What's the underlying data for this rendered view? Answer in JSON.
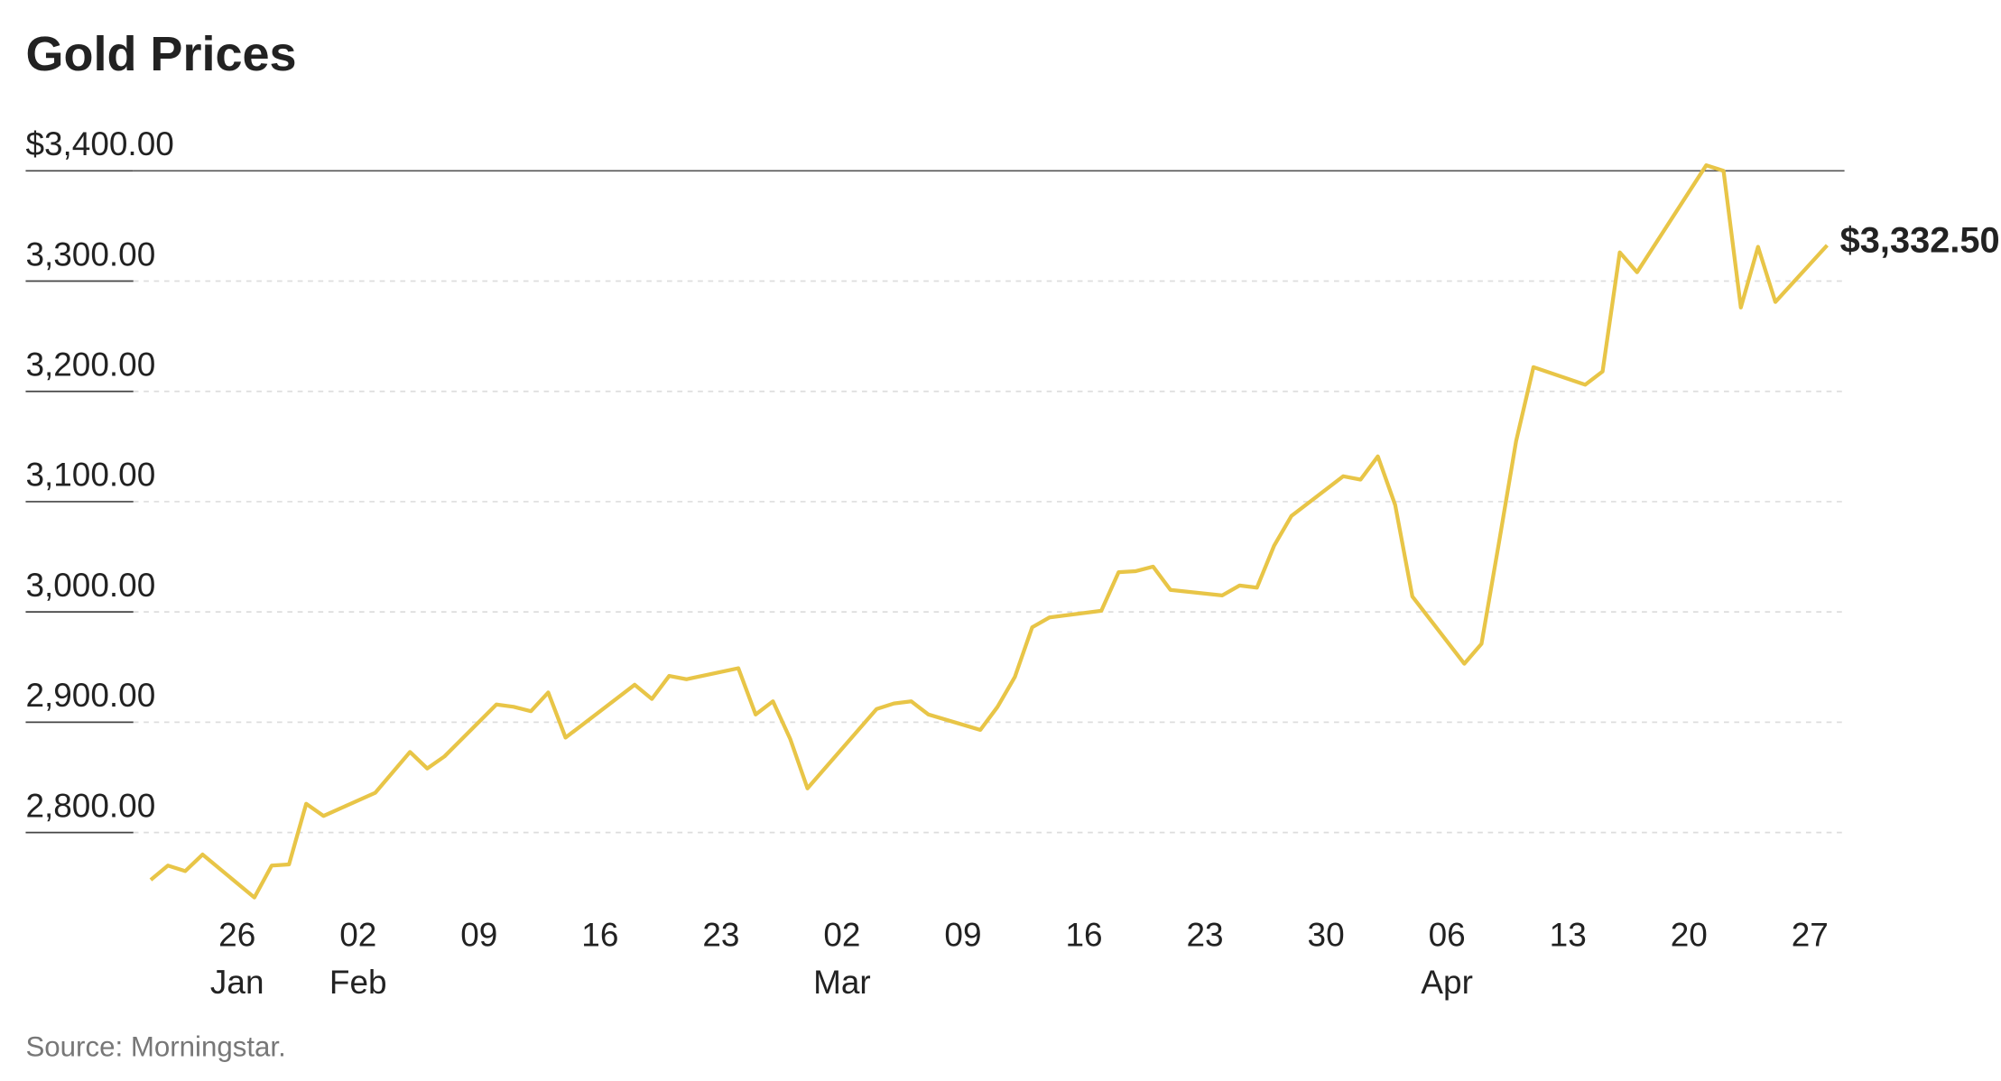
{
  "chart_data": {
    "type": "line",
    "title": "Gold Prices",
    "source": "Source: Morningstar.",
    "x": [
      "01-21",
      "01-22",
      "01-23",
      "01-24",
      "01-27",
      "01-28",
      "01-29",
      "01-30",
      "01-31",
      "02-03",
      "02-05",
      "02-06",
      "02-07",
      "02-10",
      "02-11",
      "02-12",
      "02-13",
      "02-14",
      "02-18",
      "02-19",
      "02-20",
      "02-21",
      "02-24",
      "02-25",
      "02-26",
      "02-27",
      "02-28",
      "03-04",
      "03-05",
      "03-06",
      "03-07",
      "03-10",
      "03-11",
      "03-12",
      "03-13",
      "03-14",
      "03-17",
      "03-18",
      "03-19",
      "03-20",
      "03-21",
      "03-24",
      "03-25",
      "03-26",
      "03-27",
      "03-28",
      "03-31",
      "04-01",
      "04-02",
      "04-03",
      "04-04",
      "04-07",
      "04-08",
      "04-09",
      "04-10",
      "04-11",
      "04-14",
      "04-15",
      "04-16",
      "04-17",
      "04-21",
      "04-22",
      "04-23",
      "04-24",
      "04-25",
      "04-28"
    ],
    "series": [
      {
        "name": "Gold",
        "color": "#e8c547",
        "values": [
          2757,
          2770,
          2765,
          2780,
          2741,
          2770,
          2771,
          2826,
          2815,
          2836,
          2873,
          2858,
          2869,
          2916,
          2914,
          2910,
          2927,
          2886,
          2934,
          2921,
          2942,
          2939,
          2949,
          2907,
          2919,
          2885,
          2840,
          2912,
          2917,
          2919,
          2907,
          2893,
          2914,
          2941,
          2986,
          2995,
          3001,
          3036,
          3037,
          3041,
          3020,
          3015,
          3024,
          3022,
          3060,
          3087,
          3123,
          3120,
          3141,
          3097,
          3014,
          2953,
          2971,
          3062,
          3155,
          3222,
          3206,
          3218,
          3326,
          3308,
          3405,
          3400,
          3276,
          3331,
          3281,
          3332.5
        ]
      }
    ],
    "annotations": [
      {
        "x": "04-28",
        "value": 3332.5,
        "label": "$3,332.50",
        "color": "#8f7426"
      }
    ],
    "xlim": [
      "01-20",
      "04-29"
    ],
    "xticks": [
      {
        "value": "01-26",
        "label": "26",
        "month_label": "Jan"
      },
      {
        "value": "02-02",
        "label": "02",
        "month_label": "Feb"
      },
      {
        "value": "02-09",
        "label": "09"
      },
      {
        "value": "02-16",
        "label": "16"
      },
      {
        "value": "02-23",
        "label": "23"
      },
      {
        "value": "03-02",
        "label": "02",
        "month_label": "Mar"
      },
      {
        "value": "03-09",
        "label": "09"
      },
      {
        "value": "03-16",
        "label": "16"
      },
      {
        "value": "03-23",
        "label": "23"
      },
      {
        "value": "03-30",
        "label": "30"
      },
      {
        "value": "04-06",
        "label": "06",
        "month_label": "Apr"
      },
      {
        "value": "04-13",
        "label": "13"
      },
      {
        "value": "04-20",
        "label": "20"
      },
      {
        "value": "04-27",
        "label": "27"
      }
    ],
    "ylim": [
      2720,
      3420
    ],
    "yticks": [
      {
        "value": 2800,
        "label": "2,800.00"
      },
      {
        "value": 2900,
        "label": "2,900.00"
      },
      {
        "value": 3000,
        "label": "3,000.00"
      },
      {
        "value": 3100,
        "label": "3,100.00"
      },
      {
        "value": 3200,
        "label": "3,200.00"
      },
      {
        "value": 3300,
        "label": "3,300.00"
      },
      {
        "value": 3400,
        "label": "$3,400.00"
      }
    ],
    "grid": true
  }
}
